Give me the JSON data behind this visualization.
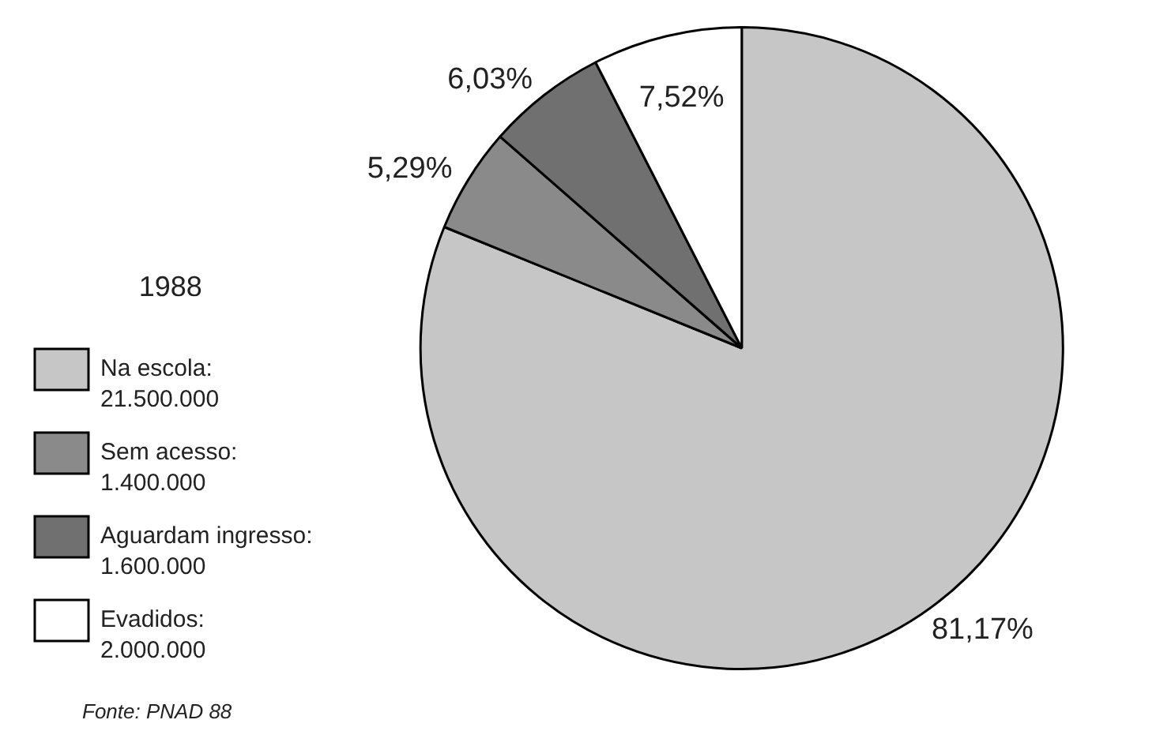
{
  "chart_data": {
    "type": "pie",
    "categories": [
      "Na escola:\n21.500.000",
      "Sem acesso:\n1.400.000",
      "Aguardam ingresso:\n1.600.000",
      "Evadidos:\n2.000.000"
    ],
    "values": [
      81.17,
      5.29,
      6.03,
      7.52
    ],
    "value_labels": [
      "81,17%",
      "5,29%",
      "6,03%",
      "7,52%"
    ],
    "colors": [
      "#c6c6c6",
      "#8a8a8a",
      "#707070",
      "#ffffff"
    ],
    "legend": "left",
    "legend_title": "1988",
    "annotations": [
      "Fonte: PNAD 88"
    ]
  }
}
